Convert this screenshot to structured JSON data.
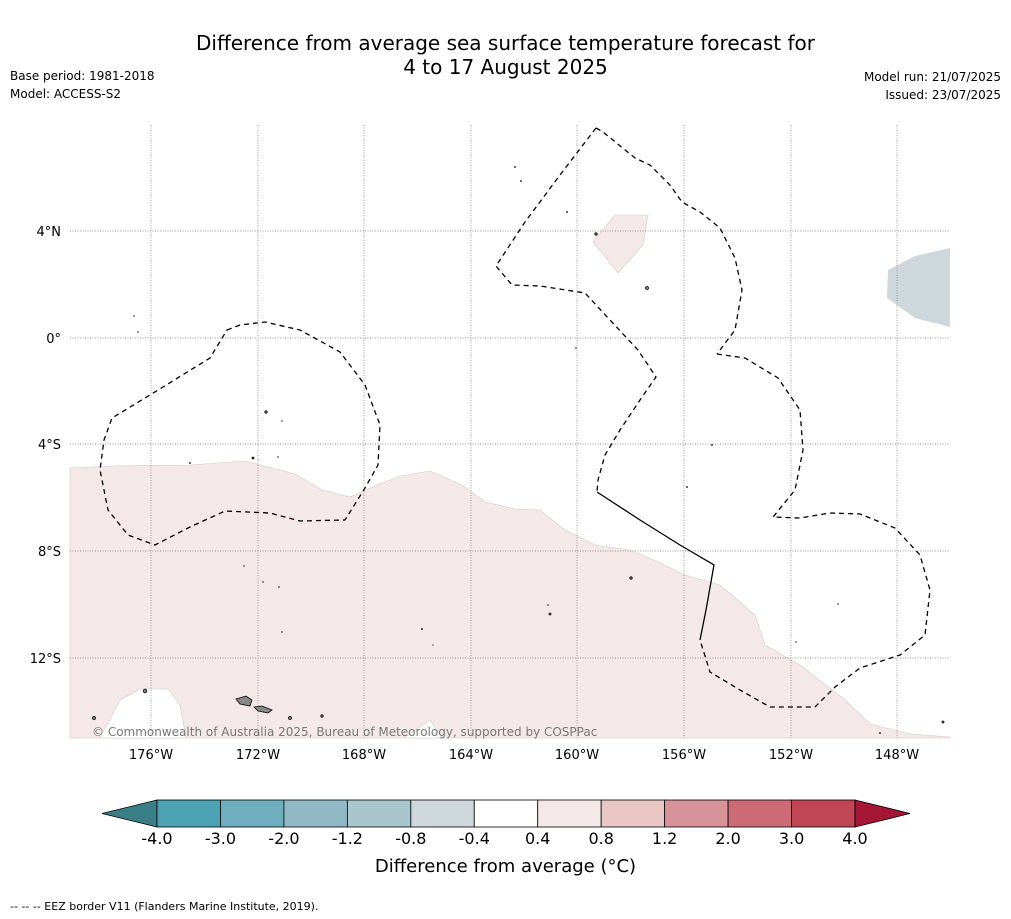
{
  "header": {
    "title_line1": "Difference from average sea surface temperature forecast for",
    "title_line2": "4 to 17 August 2025",
    "base_period": "Base period: 1981-2018",
    "model": "Model: ACCESS-S2",
    "model_run": "Model run: 21/07/2025",
    "issued": "Issued: 23/07/2025"
  },
  "map": {
    "copyright": "© Commonwealth of Australia 2025, Bureau of Meteorology, supported by COSPPac",
    "lat_labels": [
      "4°N",
      "0°",
      "4°S",
      "8°S",
      "12°S"
    ],
    "lon_labels": [
      "176°W",
      "172°W",
      "168°W",
      "164°W",
      "160°W",
      "156°W",
      "152°W",
      "148°W"
    ],
    "colors": {
      "anomaly_0.4_0.8": "#f4e9e8",
      "anomaly_-0.8_-0.4": "#cdd7dc",
      "land": "#888888",
      "eez_border": "#000000",
      "gridline": "#777777"
    }
  },
  "colorbar": {
    "tick_labels": [
      "-4.0",
      "-3.0",
      "-2.0",
      "-1.2",
      "-0.8",
      "-0.4",
      "0.4",
      "0.8",
      "1.2",
      "2.0",
      "3.0",
      "4.0"
    ],
    "colors": [
      "#3a7f88",
      "#4aa2b3",
      "#6eaebe",
      "#91b9c5",
      "#a9c6cd",
      "#cdd7dc",
      "#ffffff",
      "#f4e9e8",
      "#e8c7c4",
      "#d8929a",
      "#cc6a76",
      "#c04656",
      "#a51535"
    ],
    "title": "Difference from average (°C)"
  },
  "footer": {
    "legend_text": "--  --  -- EEZ border V11 (Flanders Marine Institute, 2019)."
  }
}
